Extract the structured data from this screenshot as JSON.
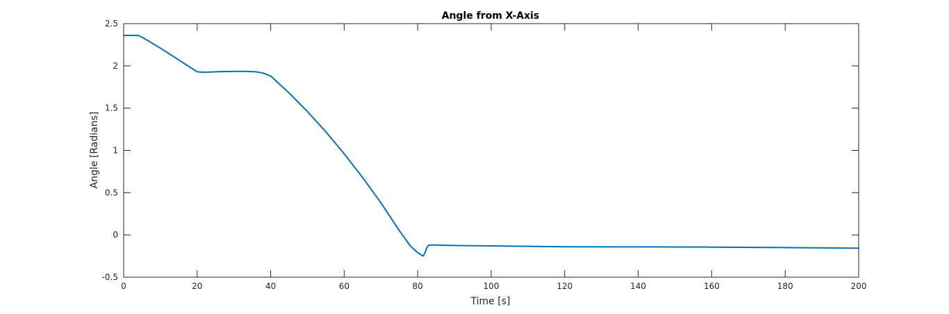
{
  "chart_data": {
    "type": "line",
    "title": "Angle from X-Axis",
    "xlabel": "Time [s]",
    "ylabel": "Angle [Radians]",
    "xlim": [
      0,
      200
    ],
    "ylim": [
      -0.5,
      2.5
    ],
    "x_ticks": [
      0,
      20,
      40,
      60,
      80,
      100,
      120,
      140,
      160,
      180,
      200
    ],
    "y_ticks": [
      -0.5,
      0,
      0.5,
      1,
      1.5,
      2,
      2.5
    ],
    "grid": false,
    "series": [
      {
        "color": "#0072BD",
        "x": [
          0,
          2,
          4,
          5,
          10,
          15,
          20,
          22,
          25,
          30,
          33,
          36,
          38,
          40,
          45,
          50,
          55,
          60,
          65,
          70,
          75,
          78,
          80,
          81.5,
          82,
          82.5,
          83,
          85,
          90,
          100,
          120,
          140,
          160,
          180,
          200
        ],
        "y": [
          2.36,
          2.36,
          2.36,
          2.34,
          2.21,
          2.07,
          1.93,
          1.925,
          1.93,
          1.935,
          1.935,
          1.93,
          1.915,
          1.88,
          1.68,
          1.46,
          1.22,
          0.96,
          0.68,
          0.38,
          0.05,
          -0.13,
          -0.21,
          -0.25,
          -0.21,
          -0.15,
          -0.12,
          -0.12,
          -0.125,
          -0.13,
          -0.14,
          -0.142,
          -0.144,
          -0.15,
          -0.157
        ]
      }
    ]
  }
}
